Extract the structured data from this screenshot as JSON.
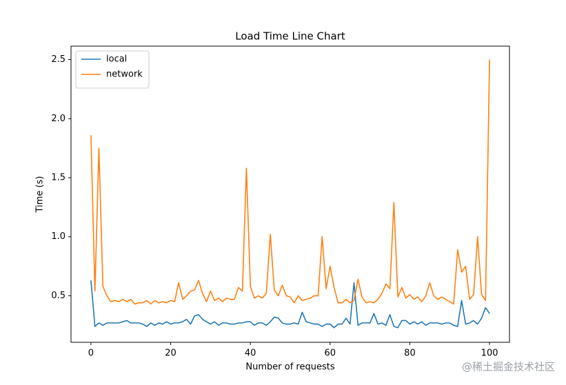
{
  "chart_data": {
    "type": "line",
    "title": "Load Time Line Chart",
    "xlabel": "Number of requests",
    "ylabel": "Time (s)",
    "watermark": "@稀土掘金技术社区",
    "legend": "upper left",
    "x": [
      0,
      1,
      2,
      3,
      4,
      5,
      6,
      7,
      8,
      9,
      10,
      11,
      12,
      13,
      14,
      15,
      16,
      17,
      18,
      19,
      20,
      21,
      22,
      23,
      24,
      25,
      26,
      27,
      28,
      29,
      30,
      31,
      32,
      33,
      34,
      35,
      36,
      37,
      38,
      39,
      40,
      41,
      42,
      43,
      44,
      45,
      46,
      47,
      48,
      49,
      50,
      51,
      52,
      53,
      54,
      55,
      56,
      57,
      58,
      59,
      60,
      61,
      62,
      63,
      64,
      65,
      66,
      67,
      68,
      69,
      70,
      71,
      72,
      73,
      74,
      75,
      76,
      77,
      78,
      79,
      80,
      81,
      82,
      83,
      84,
      85,
      86,
      87,
      88,
      89,
      90,
      91,
      92,
      93,
      94,
      95,
      96,
      97,
      98,
      99,
      100
    ],
    "series": [
      {
        "name": "local",
        "color": "#1f77b4",
        "values": [
          0.63,
          0.24,
          0.27,
          0.25,
          0.27,
          0.27,
          0.27,
          0.27,
          0.28,
          0.29,
          0.27,
          0.27,
          0.27,
          0.26,
          0.24,
          0.27,
          0.25,
          0.27,
          0.26,
          0.28,
          0.26,
          0.27,
          0.27,
          0.28,
          0.3,
          0.26,
          0.33,
          0.34,
          0.3,
          0.28,
          0.26,
          0.28,
          0.25,
          0.27,
          0.27,
          0.26,
          0.26,
          0.27,
          0.27,
          0.28,
          0.28,
          0.25,
          0.27,
          0.27,
          0.25,
          0.28,
          0.32,
          0.31,
          0.27,
          0.26,
          0.26,
          0.27,
          0.26,
          0.36,
          0.28,
          0.27,
          0.26,
          0.26,
          0.24,
          0.26,
          0.26,
          0.23,
          0.26,
          0.26,
          0.31,
          0.26,
          0.61,
          0.25,
          0.27,
          0.27,
          0.27,
          0.35,
          0.26,
          0.27,
          0.25,
          0.34,
          0.24,
          0.23,
          0.29,
          0.29,
          0.26,
          0.28,
          0.26,
          0.28,
          0.25,
          0.27,
          0.27,
          0.27,
          0.26,
          0.27,
          0.27,
          0.25,
          0.24,
          0.46,
          0.26,
          0.27,
          0.29,
          0.26,
          0.31,
          0.4,
          0.35
        ]
      },
      {
        "name": "network",
        "color": "#ff7f0e",
        "values": [
          1.86,
          0.54,
          1.75,
          0.58,
          0.5,
          0.45,
          0.46,
          0.45,
          0.47,
          0.45,
          0.47,
          0.43,
          0.44,
          0.44,
          0.46,
          0.43,
          0.46,
          0.44,
          0.45,
          0.44,
          0.46,
          0.45,
          0.61,
          0.47,
          0.5,
          0.54,
          0.55,
          0.63,
          0.52,
          0.45,
          0.54,
          0.46,
          0.48,
          0.45,
          0.48,
          0.47,
          0.47,
          0.57,
          0.54,
          1.58,
          0.58,
          0.48,
          0.5,
          0.48,
          0.52,
          1.02,
          0.55,
          0.5,
          0.59,
          0.5,
          0.49,
          0.44,
          0.5,
          0.46,
          0.47,
          0.48,
          0.5,
          0.5,
          1.0,
          0.56,
          0.75,
          0.57,
          0.44,
          0.44,
          0.47,
          0.44,
          0.46,
          0.64,
          0.49,
          0.44,
          0.45,
          0.44,
          0.47,
          0.52,
          0.6,
          0.56,
          1.29,
          0.49,
          0.57,
          0.48,
          0.51,
          0.47,
          0.49,
          0.45,
          0.5,
          0.61,
          0.5,
          0.47,
          0.49,
          0.47,
          0.45,
          0.43,
          0.89,
          0.7,
          0.75,
          0.47,
          0.51,
          1.0,
          0.51,
          0.46,
          2.5
        ]
      }
    ],
    "xlim": [
      -5,
      105
    ],
    "xticks": [
      0,
      20,
      40,
      60,
      80,
      100
    ],
    "ylim": [
      0.106,
      2.614
    ],
    "yticks": [
      0.5,
      {
        "value": 1.0,
        "label": "1.0"
      },
      1.5,
      {
        "value": 2.0,
        "label": "2.0"
      },
      2.5
    ]
  }
}
